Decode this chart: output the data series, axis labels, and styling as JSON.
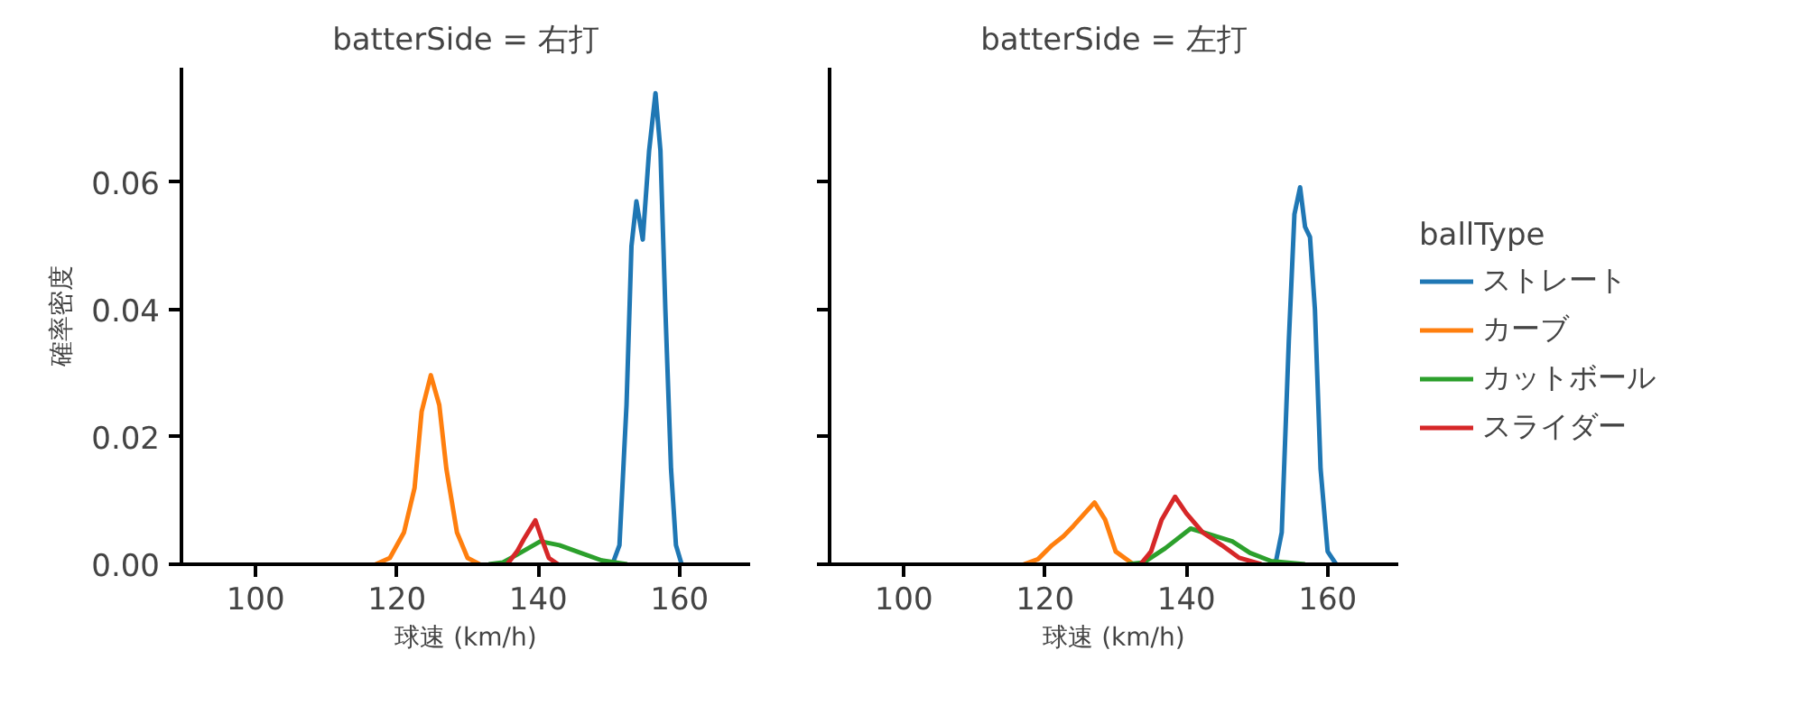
{
  "chart_data": [
    {
      "type": "line",
      "title": "batterSide = 右打",
      "xlabel": "球速 (km/h)",
      "ylabel": "確率密度",
      "xlim": [
        89.5,
        170
      ],
      "ylim": [
        0,
        0.078
      ],
      "xticks": [
        100,
        120,
        140,
        160
      ],
      "yticks": [
        {
          "value": 0,
          "label": "0.00"
        },
        {
          "value": 0.02,
          "label": "0.02"
        },
        {
          "value": 0.04,
          "label": "0.04"
        },
        {
          "value": 0.06,
          "label": "0.06"
        }
      ],
      "grid": false,
      "legend": false,
      "series": [
        {
          "color": "#1f77b4",
          "x": [
            150.5,
            151.5,
            152.5,
            153.2,
            153.9,
            154.8,
            155.7,
            156.6,
            157.3,
            158,
            158.8,
            159.5,
            160.3
          ],
          "values": [
            0,
            0.003,
            0.025,
            0.05,
            0.057,
            0.051,
            0.065,
            0.074,
            0.065,
            0.04,
            0.015,
            0.003,
            0
          ]
        },
        {
          "color": "#ff7f0e",
          "x": [
            117,
            119,
            121,
            122.5,
            123.5,
            124.8,
            126,
            127,
            128.5,
            130,
            131.7
          ],
          "values": [
            0,
            0.001,
            0.005,
            0.012,
            0.024,
            0.0297,
            0.025,
            0.015,
            0.005,
            0.001,
            0
          ]
        },
        {
          "color": "#2ca02c",
          "x": [
            133,
            135,
            137,
            140.3,
            143,
            146,
            149,
            152.6
          ],
          "values": [
            0,
            0.0003,
            0.0015,
            0.0036,
            0.003,
            0.0018,
            0.0006,
            0
          ]
        },
        {
          "color": "#d62728",
          "x": [
            135.6,
            137,
            138,
            139.6,
            140.5,
            141.5,
            142.8
          ],
          "values": [
            0,
            0.002,
            0.004,
            0.0069,
            0.004,
            0.001,
            0
          ]
        }
      ]
    },
    {
      "type": "line",
      "title": "batterSide = 左打",
      "xlabel": "球速 (km/h)",
      "legend_title": "ballType",
      "xlim": [
        89.5,
        170
      ],
      "ylim": [
        0,
        0.078
      ],
      "xticks": [
        100,
        120,
        140,
        160
      ],
      "yticks": [
        0,
        0.02,
        0.04,
        0.06
      ],
      "tick_labels": "x",
      "grid": false,
      "legend": "right",
      "series": [
        {
          "name": "ストレート",
          "color": "#1f77b4",
          "x": [
            152.6,
            153.5,
            154.5,
            155.3,
            156.1,
            156.8,
            157.5,
            158.2,
            159,
            160,
            161.2
          ],
          "values": [
            0,
            0.005,
            0.035,
            0.055,
            0.0592,
            0.053,
            0.0514,
            0.04,
            0.015,
            0.002,
            0
          ]
        },
        {
          "name": "カーブ",
          "color": "#ff7f0e",
          "x": [
            117,
            119,
            121,
            122.6,
            124,
            127,
            128.5,
            130,
            132.5
          ],
          "values": [
            0,
            0.0008,
            0.003,
            0.0044,
            0.006,
            0.0097,
            0.007,
            0.002,
            0
          ]
        },
        {
          "name": "カットボール",
          "color": "#2ca02c",
          "x": [
            131.7,
            134,
            137,
            140.6,
            143,
            146.5,
            149,
            152,
            156.8
          ],
          "values": [
            0,
            0.0003,
            0.0025,
            0.0056,
            0.0048,
            0.0036,
            0.0018,
            0.0005,
            0
          ]
        },
        {
          "name": "スライダー",
          "color": "#d62728",
          "x": [
            133.5,
            135,
            136.5,
            138.4,
            140,
            142.3,
            145,
            147.5,
            150.6
          ],
          "values": [
            0,
            0.002,
            0.007,
            0.0106,
            0.008,
            0.005,
            0.003,
            0.001,
            0
          ]
        }
      ]
    }
  ]
}
